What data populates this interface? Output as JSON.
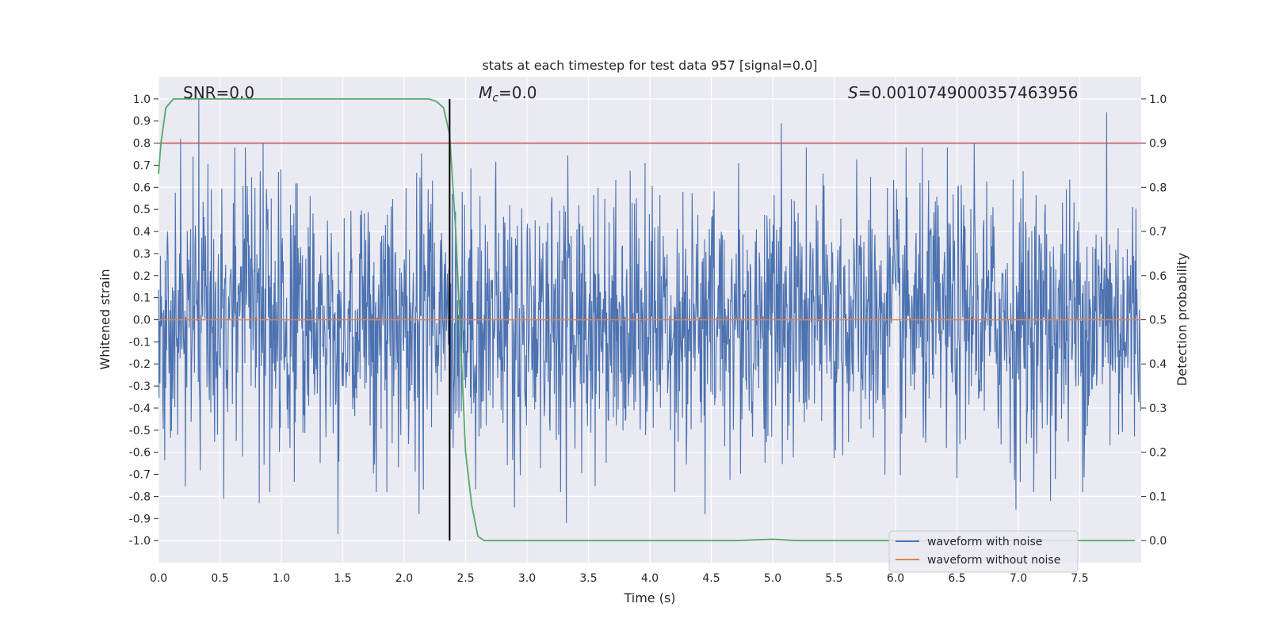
{
  "chart_data": {
    "type": "line",
    "title": "stats at each timestep for test data 957 [signal=0.0]",
    "xlabel": "Time (s)",
    "ylabel": "Whitened strain",
    "y2label": "Detection probability",
    "xlim": [
      0.0,
      8.0
    ],
    "ylim": [
      -1.1,
      1.1
    ],
    "y2lim": [
      -0.05,
      1.05
    ],
    "x_ticks": [
      "0.0",
      "0.5",
      "1.0",
      "1.5",
      "2.0",
      "2.5",
      "3.0",
      "3.5",
      "4.0",
      "4.5",
      "5.0",
      "5.5",
      "6.0",
      "6.5",
      "7.0",
      "7.5"
    ],
    "y_ticks": [
      "1.0",
      "0.9",
      "0.8",
      "0.7",
      "0.6",
      "0.5",
      "0.4",
      "0.3",
      "0.2",
      "0.1",
      "0.0",
      "-0.1",
      "-0.2",
      "-0.3",
      "-0.4",
      "-0.5",
      "-0.6",
      "-0.7",
      "-0.8",
      "-0.9",
      "-1.0"
    ],
    "y2_ticks": [
      "1.0",
      "0.9",
      "0.8",
      "0.7",
      "0.6",
      "0.5",
      "0.4",
      "0.3",
      "0.2",
      "0.1",
      "0.0"
    ],
    "annotations": {
      "snr": "SNR=0.0",
      "mc_symbol": "M",
      "mc_sub": "c",
      "mc_value": "=0.0",
      "s_symbol": "S",
      "s_value": "=0.0010749000357463956"
    },
    "threshold": {
      "axis": "y2",
      "value": 0.9
    },
    "vertical_line_x": 2.37,
    "series": [
      {
        "name": "waveform with noise",
        "color": "#4c72b0",
        "kind": "noise",
        "n_samples": 2048,
        "sample_rate": 256,
        "amplitude": 0.3,
        "outliers": [
          {
            "t": 0.18,
            "v": 0.82
          },
          {
            "t": 0.33,
            "v": 1.0
          },
          {
            "t": 0.85,
            "v": 0.8
          },
          {
            "t": 5.07,
            "v": 0.89
          },
          {
            "t": 7.72,
            "v": 0.94
          },
          {
            "t": 6.64,
            "v": 0.8
          },
          {
            "t": 1.46,
            "v": -0.97
          },
          {
            "t": 0.82,
            "v": -0.83
          },
          {
            "t": 0.53,
            "v": -0.81
          },
          {
            "t": 2.12,
            "v": -0.88
          },
          {
            "t": 3.32,
            "v": -0.92
          },
          {
            "t": 4.45,
            "v": -0.88
          },
          {
            "t": 6.98,
            "v": -0.86
          },
          {
            "t": 2.9,
            "v": -0.85
          },
          {
            "t": 7.26,
            "v": -0.82
          }
        ]
      },
      {
        "name": "waveform without noise",
        "color": "#dd8452",
        "kind": "flat",
        "value": 0.0
      },
      {
        "name": "detection probability",
        "color": "#55a868",
        "axis": "y2",
        "x": [
          0.0,
          0.02,
          0.06,
          0.12,
          0.3,
          1.0,
          2.0,
          2.2,
          2.26,
          2.32,
          2.37,
          2.42,
          2.46,
          2.5,
          2.55,
          2.6,
          2.65,
          3.0,
          4.0,
          4.7,
          5.0,
          5.2,
          5.5,
          6.0,
          7.0,
          7.5,
          7.95
        ],
        "y": [
          0.83,
          0.9,
          0.98,
          1.0,
          1.0,
          1.0,
          1.0,
          1.0,
          0.995,
          0.98,
          0.92,
          0.7,
          0.45,
          0.2,
          0.08,
          0.01,
          0.0,
          0.0,
          0.0,
          0.0,
          0.003,
          0.0,
          0.0,
          0.0,
          0.0,
          0.0,
          0.0
        ]
      }
    ],
    "legend": {
      "position": "lower-right",
      "entries": [
        {
          "label": "waveform with noise",
          "color": "#4c72b0"
        },
        {
          "label": "waveform without noise",
          "color": "#dd8452"
        }
      ]
    },
    "colors": {
      "background": "#eaeaf2",
      "grid": "#ffffff",
      "threshold": "#c44e52",
      "vline": "#000000"
    }
  }
}
